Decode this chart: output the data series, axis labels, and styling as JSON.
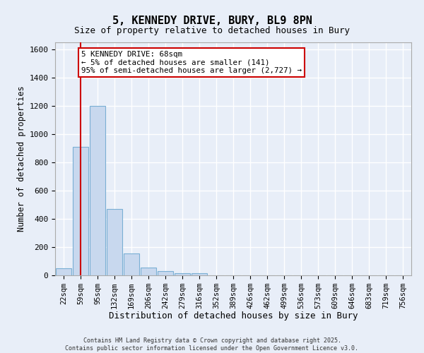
{
  "title_line1": "5, KENNEDY DRIVE, BURY, BL9 8PN",
  "title_line2": "Size of property relative to detached houses in Bury",
  "xlabel": "Distribution of detached houses by size in Bury",
  "ylabel": "Number of detached properties",
  "categories": [
    "22sqm",
    "59sqm",
    "95sqm",
    "132sqm",
    "169sqm",
    "206sqm",
    "242sqm",
    "279sqm",
    "316sqm",
    "352sqm",
    "389sqm",
    "426sqm",
    "462sqm",
    "499sqm",
    "536sqm",
    "573sqm",
    "609sqm",
    "646sqm",
    "683sqm",
    "719sqm",
    "756sqm"
  ],
  "values": [
    50,
    910,
    1200,
    470,
    155,
    55,
    28,
    15,
    15,
    0,
    0,
    0,
    0,
    0,
    0,
    0,
    0,
    0,
    0,
    0,
    0
  ],
  "bar_color": "#c8d8ee",
  "bar_edge_color": "#7aafd4",
  "ylim": [
    0,
    1650
  ],
  "yticks": [
    0,
    200,
    400,
    600,
    800,
    1000,
    1200,
    1400,
    1600
  ],
  "vline_x_index": 1,
  "vline_color": "#cc0000",
  "annotation_text": "5 KENNEDY DRIVE: 68sqm\n← 5% of detached houses are smaller (141)\n95% of semi-detached houses are larger (2,727) →",
  "annotation_box_color": "#cc0000",
  "annotation_bg": "#ffffff",
  "fig_bg_color": "#e8eef8",
  "plot_bg_color": "#e8eef8",
  "grid_color": "#ffffff",
  "footer_line1": "Contains HM Land Registry data © Crown copyright and database right 2025.",
  "footer_line2": "Contains public sector information licensed under the Open Government Licence v3.0."
}
